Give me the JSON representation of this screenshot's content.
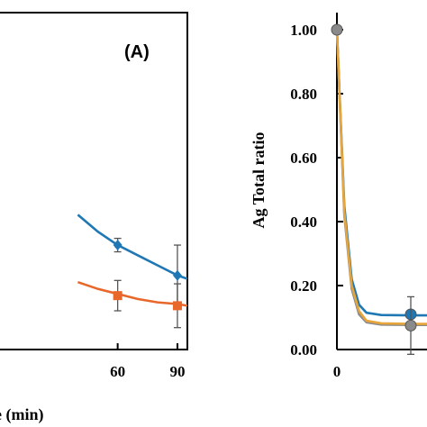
{
  "chart_data": [
    {
      "type": "line",
      "panel_label": "(A)",
      "xlabel": "e (min)",
      "ylabel": "",
      "x_ticks": [
        "60",
        "90"
      ],
      "xlim": [
        0,
        95
      ],
      "ylim": [
        0,
        1
      ],
      "series": [
        {
          "color": "#1f77b4",
          "marker": "diamond",
          "points": [
            {
              "x": 60,
              "y": 0.31,
              "err": 0.02
            },
            {
              "x": 90,
              "y": 0.22,
              "err": 0.09
            }
          ],
          "curve_x": [
            40,
            50,
            60,
            70,
            80,
            90,
            95
          ],
          "curve_y": [
            0.4,
            0.35,
            0.31,
            0.28,
            0.25,
            0.22,
            0.21
          ]
        },
        {
          "color": "#e8672a",
          "marker": "square",
          "points": [
            {
              "x": 60,
              "y": 0.16,
              "err": 0.045
            },
            {
              "x": 90,
              "y": 0.13,
              "err": 0.065
            }
          ],
          "curve_x": [
            40,
            50,
            60,
            70,
            80,
            90,
            95
          ],
          "curve_y": [
            0.2,
            0.18,
            0.165,
            0.15,
            0.14,
            0.135,
            0.13
          ]
        }
      ]
    },
    {
      "type": "line",
      "panel_label": "",
      "xlabel": "",
      "ylabel": "Ag Total ratio",
      "y_ticks": [
        "0.00",
        "0.20",
        "0.40",
        "0.60",
        "0.80",
        "1.00"
      ],
      "x_ticks": [
        "0"
      ],
      "ylim": [
        0,
        1.05
      ],
      "xlim": [
        0,
        30
      ],
      "grid": false,
      "series": [
        {
          "color": "#1f77b4",
          "points": [
            {
              "x": 10,
              "y": 0.11,
              "err": 0.0
            }
          ],
          "curve_x": [
            0,
            1,
            2,
            3,
            4,
            6,
            10,
            30
          ],
          "curve_y": [
            1.0,
            0.45,
            0.22,
            0.14,
            0.115,
            0.108,
            0.107,
            0.107
          ]
        },
        {
          "color": "#8a8a8a",
          "points": [
            {
              "x": 0,
              "y": 1.0,
              "err": 0.0
            },
            {
              "x": 10,
              "y": 0.075,
              "err": 0.09
            }
          ],
          "curve_x": [
            0,
            1,
            2,
            3,
            4,
            6,
            10,
            30
          ],
          "curve_y": [
            1.0,
            0.42,
            0.19,
            0.11,
            0.085,
            0.078,
            0.077,
            0.077
          ]
        },
        {
          "color": "#e8a53a",
          "points": [],
          "curve_x": [
            0,
            1,
            2,
            3,
            4,
            6,
            10,
            30
          ],
          "curve_y": [
            1.0,
            0.43,
            0.2,
            0.12,
            0.09,
            0.082,
            0.08,
            0.08
          ]
        }
      ]
    }
  ]
}
